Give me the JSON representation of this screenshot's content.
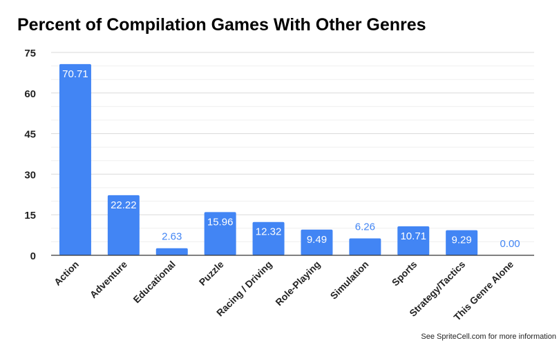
{
  "chart_data": {
    "type": "bar",
    "title": "Percent of Compilation Games With Other Genres",
    "xlabel": "",
    "ylabel": "",
    "categories": [
      "Action",
      "Adventure",
      "Educational",
      "Puzzle",
      "Racing / Driving",
      "Role-Playing",
      "Simulation",
      "Sports",
      "Strategy/Tactics",
      "This Genre Alone"
    ],
    "values": [
      70.71,
      22.22,
      2.63,
      15.96,
      12.32,
      9.49,
      6.26,
      10.71,
      9.29,
      0.0
    ],
    "data_labels": [
      "70.71",
      "22.22",
      "2.63",
      "15.96",
      "12.32",
      "9.49",
      "6.26",
      "10.71",
      "9.29",
      "0.00"
    ],
    "ylim": [
      0,
      75
    ],
    "yticks": [
      0,
      15,
      30,
      45,
      60,
      75
    ],
    "minor_grid_step": 5,
    "grid": true,
    "legend": "none",
    "colors": {
      "bar": "#4285f4",
      "label_inside": "#ffffff",
      "label_outside": "#4285f4"
    }
  },
  "footer": "See SpriteCell.com for more information"
}
